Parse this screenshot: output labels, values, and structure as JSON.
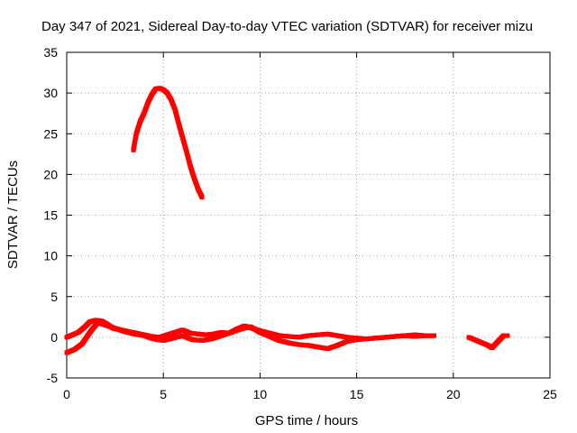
{
  "chart_data": {
    "type": "scatter",
    "title": "Day 347 of 2021, Sidereal Day-to-day VTEC variation (SDTVAR) for receiver mizu",
    "xlabel": "GPS time / hours",
    "ylabel": "SDTVAR / TECUs",
    "xlim": [
      0,
      25
    ],
    "ylim": [
      -5,
      35
    ],
    "xticks": [
      0,
      5,
      10,
      15,
      20,
      25
    ],
    "yticks": [
      -5,
      0,
      5,
      10,
      15,
      20,
      25,
      30,
      35
    ],
    "grid": true,
    "marker_color": "#ff0000",
    "series": [
      {
        "name": "arc-high",
        "type": "line",
        "x": [
          3.45,
          3.6,
          3.8,
          4.0,
          4.2,
          4.4,
          4.6,
          4.8,
          5.0,
          5.2,
          5.4,
          5.6,
          5.8,
          6.0,
          6.2,
          6.4,
          6.6,
          6.8,
          7.0
        ],
        "y": [
          23.0,
          25.0,
          26.5,
          27.5,
          28.8,
          29.8,
          30.5,
          30.6,
          30.4,
          30.0,
          29.2,
          28.0,
          26.2,
          24.5,
          22.8,
          21.0,
          19.5,
          18.2,
          17.2
        ]
      },
      {
        "name": "low-track-a",
        "type": "line",
        "x": [
          0,
          0.3,
          0.6,
          0.9,
          1.2,
          1.5,
          1.8,
          2.1,
          2.4,
          2.8,
          3.2,
          3.6,
          4.0,
          4.4,
          4.8,
          5.2,
          5.6,
          6.0,
          6.4,
          6.8,
          7.2,
          7.6,
          8.0,
          8.4,
          8.8,
          9.2,
          9.6,
          10.0,
          10.5,
          11.0,
          11.5,
          12.0,
          12.5,
          13.0,
          13.5,
          14.0,
          14.5,
          15.0,
          15.5,
          16.0,
          16.5,
          17.0,
          17.5,
          18.0,
          18.5,
          19.0
        ],
        "y": [
          0.0,
          0.3,
          0.6,
          1.2,
          1.9,
          2.1,
          2.0,
          1.6,
          1.1,
          0.9,
          0.7,
          0.5,
          0.3,
          0.1,
          0.0,
          0.3,
          0.6,
          0.9,
          0.5,
          0.4,
          0.3,
          0.4,
          0.6,
          0.5,
          1.0,
          1.4,
          1.1,
          0.8,
          0.5,
          0.2,
          0.1,
          0.0,
          0.2,
          0.3,
          0.4,
          0.2,
          0.0,
          -0.1,
          -0.2,
          -0.1,
          0.0,
          0.1,
          0.2,
          0.3,
          0.2,
          0.2
        ]
      },
      {
        "name": "low-track-b",
        "type": "line",
        "x": [
          0,
          0.4,
          0.8,
          1.2,
          1.6,
          2.0,
          2.5,
          3.0,
          3.5,
          4.0,
          4.5,
          5.0,
          5.5,
          6.0,
          6.5,
          7.0,
          7.5,
          8.0,
          8.5,
          9.0,
          9.5,
          10.0,
          10.5,
          11.0,
          11.5,
          12.0,
          12.5,
          13.0,
          13.5,
          14.0,
          14.5,
          15.0,
          15.5,
          16.0,
          16.5,
          17.0,
          17.5,
          18.0,
          18.5,
          19.0
        ],
        "y": [
          -1.9,
          -1.5,
          -0.8,
          0.6,
          1.8,
          1.5,
          1.1,
          0.7,
          0.4,
          0.2,
          -0.2,
          -0.4,
          -0.1,
          0.2,
          -0.3,
          -0.4,
          -0.2,
          0.2,
          0.6,
          1.0,
          1.3,
          0.6,
          0.1,
          -0.4,
          -0.7,
          -0.9,
          -1.0,
          -1.2,
          -1.4,
          -1.0,
          -0.5,
          -0.3,
          -0.2,
          -0.1,
          0.0,
          0.1,
          0.2,
          0.1,
          0.2,
          0.2
        ]
      },
      {
        "name": "late-arc",
        "type": "line",
        "x": [
          20.8,
          21.0,
          21.2,
          21.4,
          21.6,
          21.8,
          22.0,
          22.2,
          22.4,
          22.6,
          22.8
        ],
        "y": [
          0.0,
          -0.2,
          -0.4,
          -0.6,
          -0.8,
          -1.0,
          -1.3,
          -0.8,
          -0.3,
          0.2,
          0.2
        ]
      }
    ]
  }
}
